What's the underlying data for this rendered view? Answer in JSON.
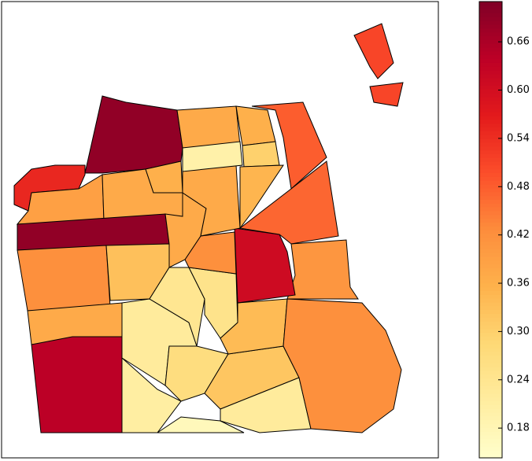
{
  "chart_data": {
    "type": "choropleth",
    "colormap": "YlOrRd",
    "values": [
      0.69,
      0.55,
      0.39,
      0.37,
      0.69,
      0.42,
      0.33,
      0.37,
      0.64,
      0.21,
      0.17,
      0.22,
      0.24,
      0.25,
      0.27,
      0.32,
      0.22,
      0.34,
      0.42,
      0.41,
      0.61,
      0.42,
      0.37,
      0.37,
      0.36,
      0.37,
      0.2,
      0.36,
      0.3,
      0.35,
      0.48,
      0.47,
      0.51,
      0.51
    ],
    "clim": [
      0.143,
      0.71
    ],
    "cticks": [
      0.18,
      0.24,
      {
        "value": 0.3,
        "label": "0.30"
      },
      0.36,
      0.42,
      0.48,
      0.54,
      {
        "value": 0.6,
        "label": "0.60"
      },
      0.66
    ]
  }
}
